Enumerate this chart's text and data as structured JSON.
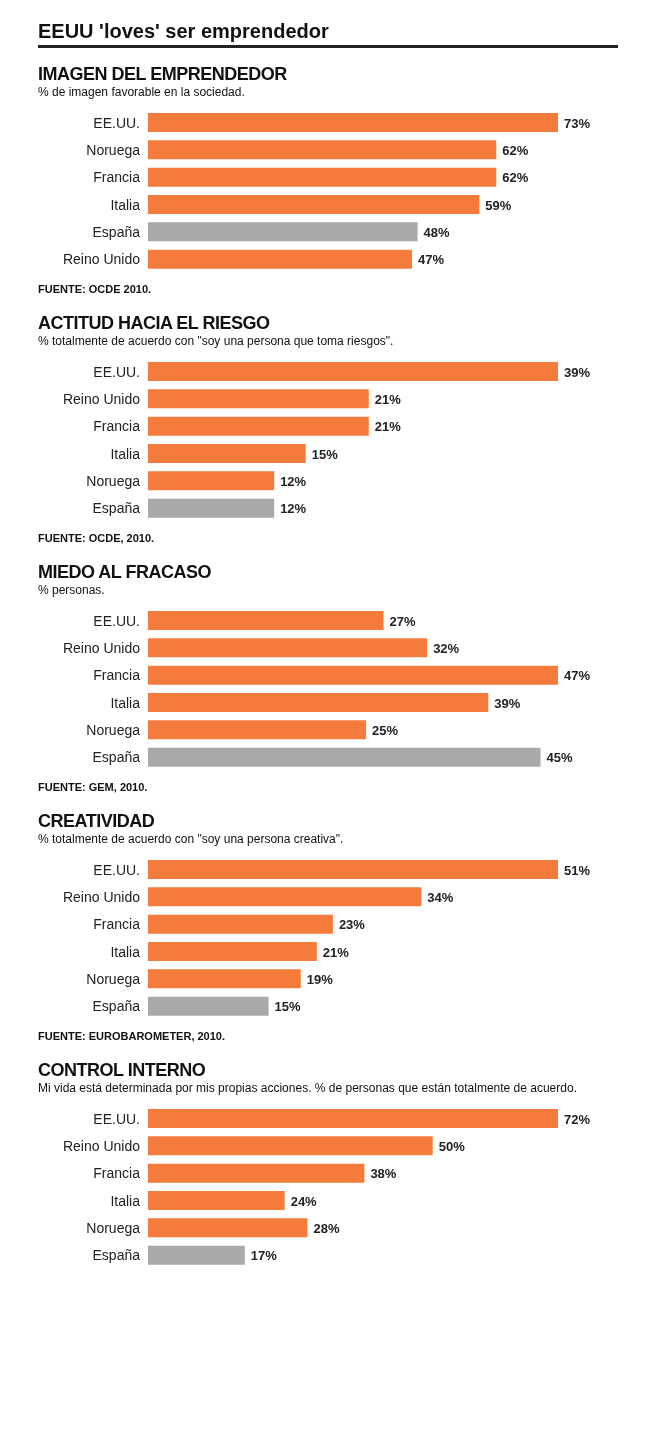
{
  "chart_data": [
    {
      "type": "bar",
      "orientation": "horizontal",
      "tick_labels": "y",
      "title": "IMAGEN DEL EMPRENDEDOR",
      "subtitle": "% de imagen favorable en la sociedad.",
      "categories": [
        "EE.UU.",
        "Noruega",
        "Francia",
        "Italia",
        "España",
        "Reino Unido"
      ],
      "values": [
        73,
        62,
        62,
        59,
        48,
        47
      ],
      "value_labels": [
        "73%",
        "62%",
        "62%",
        "59%",
        "48%",
        "47%"
      ],
      "colors": [
        "#f47b3c",
        "#f47b3c",
        "#f47b3c",
        "#f47b3c",
        "#a9a9a9",
        "#f47b3c"
      ],
      "annotations": [
        "EEUU 'loves' ser emprendedor",
        "FUENTE: OCDE 2010."
      ]
    },
    {
      "type": "bar",
      "orientation": "horizontal",
      "tick_labels": "y",
      "title": "ACTITUD HACIA EL RIESGO",
      "subtitle": "% totalmente de acuerdo con \"soy una persona que toma riesgos\".",
      "categories": [
        "EE.UU.",
        "Reino Unido",
        "Francia",
        "Italia",
        "Noruega",
        "España"
      ],
      "values": [
        39,
        21,
        21,
        15,
        12,
        12
      ],
      "value_labels": [
        "39%",
        "21%",
        "21%",
        "15%",
        "12%",
        "12%"
      ],
      "colors": [
        "#f47b3c",
        "#f47b3c",
        "#f47b3c",
        "#f47b3c",
        "#f47b3c",
        "#a9a9a9"
      ],
      "annotations": [
        "FUENTE: OCDE, 2010."
      ]
    },
    {
      "type": "bar",
      "orientation": "horizontal",
      "tick_labels": "y",
      "title": "MIEDO AL FRACASO",
      "subtitle": "% personas.",
      "categories": [
        "EE.UU.",
        "Reino Unido",
        "Francia",
        "Italia",
        "Noruega",
        "España"
      ],
      "values": [
        27,
        32,
        47,
        39,
        25,
        45
      ],
      "value_labels": [
        "27%",
        "32%",
        "47%",
        "39%",
        "25%",
        "45%"
      ],
      "colors": [
        "#f47b3c",
        "#f47b3c",
        "#f47b3c",
        "#f47b3c",
        "#f47b3c",
        "#a9a9a9"
      ],
      "annotations": [
        "FUENTE: GEM, 2010."
      ]
    },
    {
      "type": "bar",
      "orientation": "horizontal",
      "tick_labels": "y",
      "title": "CREATIVIDAD",
      "subtitle": "% totalmente de acuerdo con \"soy una persona creativa\".",
      "categories": [
        "EE.UU.",
        "Reino Unido",
        "Francia",
        "Italia",
        "Noruega",
        "España"
      ],
      "values": [
        51,
        34,
        23,
        21,
        19,
        15
      ],
      "value_labels": [
        "51%",
        "34%",
        "23%",
        "21%",
        "19%",
        "15%"
      ],
      "colors": [
        "#f47b3c",
        "#f47b3c",
        "#f47b3c",
        "#f47b3c",
        "#f47b3c",
        "#a9a9a9"
      ],
      "annotations": [
        "FUENTE: EUROBAROMETER, 2010."
      ]
    },
    {
      "type": "bar",
      "orientation": "horizontal",
      "tick_labels": "y",
      "title": "CONTROL INTERNO",
      "subtitle": "Mi vida está determinada por mis propias acciones. % de personas que están totalmente de acuerdo.",
      "categories": [
        "EE.UU.",
        "Reino Unido",
        "Francia",
        "Italia",
        "Noruega",
        "España"
      ],
      "values": [
        72,
        50,
        38,
        24,
        28,
        17
      ],
      "value_labels": [
        "72%",
        "50%",
        "38%",
        "24%",
        "28%",
        "17%"
      ],
      "colors": [
        "#f47b3c",
        "#f47b3c",
        "#f47b3c",
        "#f47b3c",
        "#f47b3c",
        "#a9a9a9"
      ]
    }
  ]
}
